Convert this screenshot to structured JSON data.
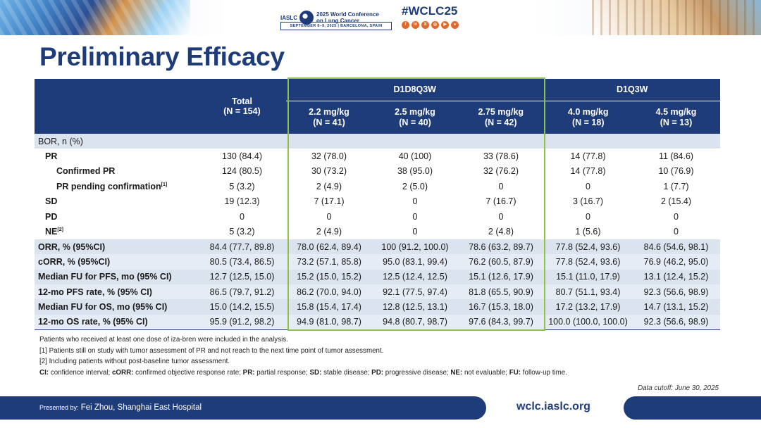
{
  "header": {
    "org": "IASLC",
    "conference_title": "2025 World Conference on Lung Cancer",
    "conference_dates": "SEPTEMBER 6–9, 2025  |  BARCELONA, SPAIN",
    "hashtag": "#WCLC25",
    "social_icons": [
      "facebook-icon",
      "linkedin-icon",
      "x-icon",
      "instagram-icon",
      "youtube-icon",
      "wechat-icon"
    ]
  },
  "title": "Preliminary Efficacy",
  "table": {
    "groups": [
      {
        "label": "D1D8Q3W"
      },
      {
        "label": "D1Q3W"
      }
    ],
    "total_header": [
      "Total",
      "(N = 154)"
    ],
    "columns": [
      {
        "dose": "2.2 mg/kg",
        "n": "(N = 41)"
      },
      {
        "dose": "2.5 mg/kg",
        "n": "(N = 40)"
      },
      {
        "dose": "2.75 mg/kg",
        "n": "(N = 42)"
      },
      {
        "dose": "4.0 mg/kg",
        "n": "(N = 18)"
      },
      {
        "dose": "4.5 mg/kg",
        "n": "(N = 13)"
      }
    ],
    "section_label": "BOR, n (%)",
    "bor_rows": [
      {
        "label": "PR",
        "sup": "",
        "values": [
          "130 (84.4)",
          "32 (78.0)",
          "40 (100)",
          "33 (78.6)",
          "14 (77.8)",
          "11 (84.6)"
        ]
      },
      {
        "label": "Confirmed PR",
        "sup": "",
        "values": [
          "124 (80.5)",
          "30 (73.2)",
          "38 (95.0)",
          "32 (76.2)",
          "14 (77.8)",
          "10 (76.9)"
        ]
      },
      {
        "label": "PR pending confirmation",
        "sup": "[1]",
        "values": [
          "5 (3.2)",
          "2 (4.9)",
          "2 (5.0)",
          "0",
          "0",
          "1 (7.7)"
        ]
      },
      {
        "label": "SD",
        "sup": "",
        "values": [
          "19 (12.3)",
          "7 (17.1)",
          "0",
          "7 (16.7)",
          "3 (16.7)",
          "2 (15.4)"
        ]
      },
      {
        "label": "PD",
        "sup": "",
        "values": [
          "0",
          "0",
          "0",
          "0",
          "0",
          "0"
        ]
      },
      {
        "label": "NE",
        "sup": "[2]",
        "values": [
          "5 (3.2)",
          "2 (4.9)",
          "0",
          "2 (4.8)",
          "1 (5.6)",
          "0"
        ]
      }
    ],
    "endpoint_rows": [
      {
        "label": "ORR, % (95%CI)",
        "values": [
          "84.4 (77.7, 89.8)",
          "78.0 (62.4, 89.4)",
          "100 (91.2, 100.0)",
          "78.6 (63.2, 89.7)",
          "77.8 (52.4, 93.6)",
          "84.6 (54.6, 98.1)"
        ]
      },
      {
        "label": "cORR, % (95%CI)",
        "values": [
          "80.5 (73.4, 86.5)",
          "73.2 (57.1, 85.8)",
          "95.0 (83.1, 99.4)",
          "76.2 (60.5, 87.9)",
          "77.8 (52.4, 93.6)",
          "76.9 (46.2, 95.0)"
        ]
      },
      {
        "label": "Median FU for PFS, mo (95% CI)",
        "values": [
          "12.7 (12.5, 15.0)",
          "15.2 (15.0, 15.2)",
          "12.5 (12.4, 12.5)",
          "15.1 (12.6, 17.9)",
          "15.1 (11.0, 17.9)",
          "13.1 (12.4, 15.2)"
        ]
      },
      {
        "label": "12-mo PFS rate, % (95% CI)",
        "values": [
          "86.5 (79.7, 91.2)",
          "86.2 (70.0, 94.0)",
          "92.1 (77.5, 97.4)",
          "81.8 (65.5, 90.9)",
          "80.7 (51.1, 93.4)",
          "92.3 (56.6, 98.9)"
        ]
      },
      {
        "label": "Median FU for OS, mo (95% CI)",
        "values": [
          "15.0 (14.2, 15.5)",
          "15.8 (15.4, 17.4)",
          "12.8 (12.5, 13.1)",
          "16.7 (15.3, 18.0)",
          "17.2 (13.2, 17.9)",
          "14.7 (13.1, 15.2)"
        ]
      },
      {
        "label": "12-mo OS rate, % (95% CI)",
        "values": [
          "95.9 (91.2, 98.2)",
          "94.9 (81.0, 98.7)",
          "94.8 (80.7, 98.7)",
          "97.6 (84.3, 99.7)",
          "100.0 (100.0, 100.0)",
          "92.3 (56.6, 98.9)"
        ]
      }
    ]
  },
  "footnotes": {
    "line1": "Patients who received  at least one dose of iza-bren  were included in the analysis.",
    "line2": "[1] Patients still on study with tumor assessment of PR and not reach to the next time point of tumor assessment.",
    "line3": "[2] Including  patients without  post-baseline tumor assessment.",
    "abbreviations": [
      {
        "abbr": "CI:",
        "text": "confidence  interval;"
      },
      {
        "abbr": "cORR:",
        "text": "confirmed objective response rate;"
      },
      {
        "abbr": "PR:",
        "text": "partial response;"
      },
      {
        "abbr": "SD:",
        "text": "stable disease;"
      },
      {
        "abbr": "PD:",
        "text": "progressive  disease;"
      },
      {
        "abbr": "NE:",
        "text": "not evaluable;"
      },
      {
        "abbr": "FU:",
        "text": "follow-up time."
      }
    ]
  },
  "data_cutoff": "Data cutoff: June 30, 2025",
  "footer": {
    "presented_by": "Presented by:",
    "presenter": "Fei Zhou, Shanghai East Hospital",
    "url": "wclc.iaslc.org"
  },
  "colors": {
    "primary_navy": "#1e3c7a",
    "highlight_green": "#8cc24a",
    "row_shade": "#dbe3ef"
  }
}
